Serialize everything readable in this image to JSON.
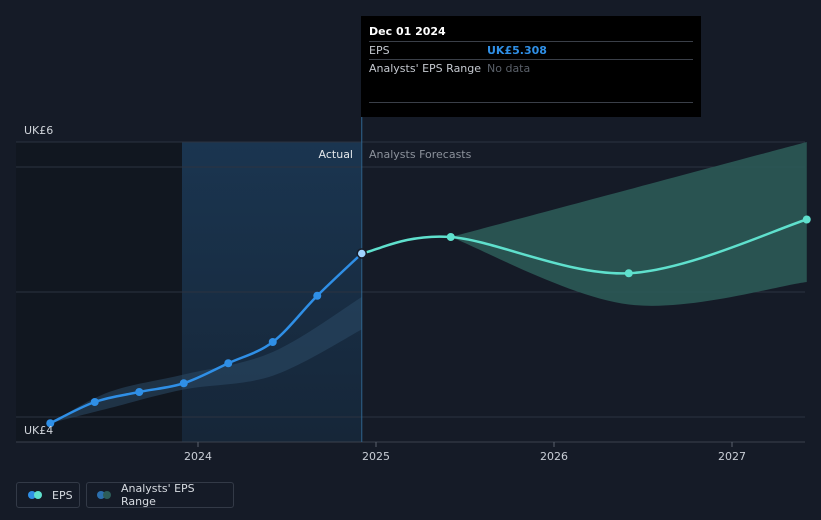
{
  "chart_data": {
    "type": "line",
    "x_ticks": [
      "2024",
      "2025",
      "2026",
      "2027"
    ],
    "y_labels": {
      "top": "UK£6",
      "bottom": "UK£4"
    },
    "ylim": [
      4,
      6
    ],
    "region_labels": {
      "actual": "Actual",
      "forecast": "Analysts Forecasts"
    },
    "series": [
      {
        "name": "EPS",
        "kind": "actual",
        "color": "#2f8fe6",
        "points": [
          [
            2023.17,
            3.95
          ],
          [
            2023.42,
            4.12
          ],
          [
            2023.67,
            4.2
          ],
          [
            2023.92,
            4.27
          ],
          [
            2024.17,
            4.43
          ],
          [
            2024.42,
            4.6
          ],
          [
            2024.67,
            4.97
          ],
          [
            2024.92,
            5.308
          ]
        ]
      },
      {
        "name": "EPS forecast",
        "kind": "forecast",
        "color": "#5fe0cd",
        "points": [
          [
            2024.92,
            5.308
          ],
          [
            2025.42,
            5.44
          ],
          [
            2026.42,
            5.15
          ],
          [
            2027.42,
            5.58
          ]
        ]
      }
    ],
    "range": {
      "name": "Analysts' EPS Range",
      "color": "#2d5d59",
      "upper": [
        [
          2025.42,
          5.44
        ],
        [
          2026.42,
          5.82
        ],
        [
          2027.42,
          6.2
        ]
      ],
      "lower": [
        [
          2025.42,
          5.44
        ],
        [
          2026.42,
          4.9
        ],
        [
          2027.42,
          5.08
        ]
      ]
    },
    "past_range": {
      "upper": [
        [
          2023.17,
          3.95
        ],
        [
          2023.5,
          4.2
        ],
        [
          2023.92,
          4.34
        ],
        [
          2024.42,
          4.52
        ],
        [
          2024.92,
          4.96
        ]
      ],
      "lower": [
        [
          2023.17,
          3.95
        ],
        [
          2023.5,
          4.07
        ],
        [
          2023.92,
          4.22
        ],
        [
          2024.42,
          4.33
        ],
        [
          2024.92,
          4.7
        ]
      ]
    },
    "highlight": {
      "date": "Dec 01 2024",
      "x": 2024.92,
      "eps_label": "EPS",
      "eps_value": "UK£5.308",
      "range_label": "Analysts' EPS Range",
      "range_value": "No data"
    },
    "legend": [
      {
        "label": "EPS",
        "colors": [
          "#2f8fe6",
          "#5fe0cd"
        ]
      },
      {
        "label": "Analysts' EPS Range",
        "colors": [
          "#2b6fae",
          "#2d5d59"
        ]
      }
    ]
  }
}
